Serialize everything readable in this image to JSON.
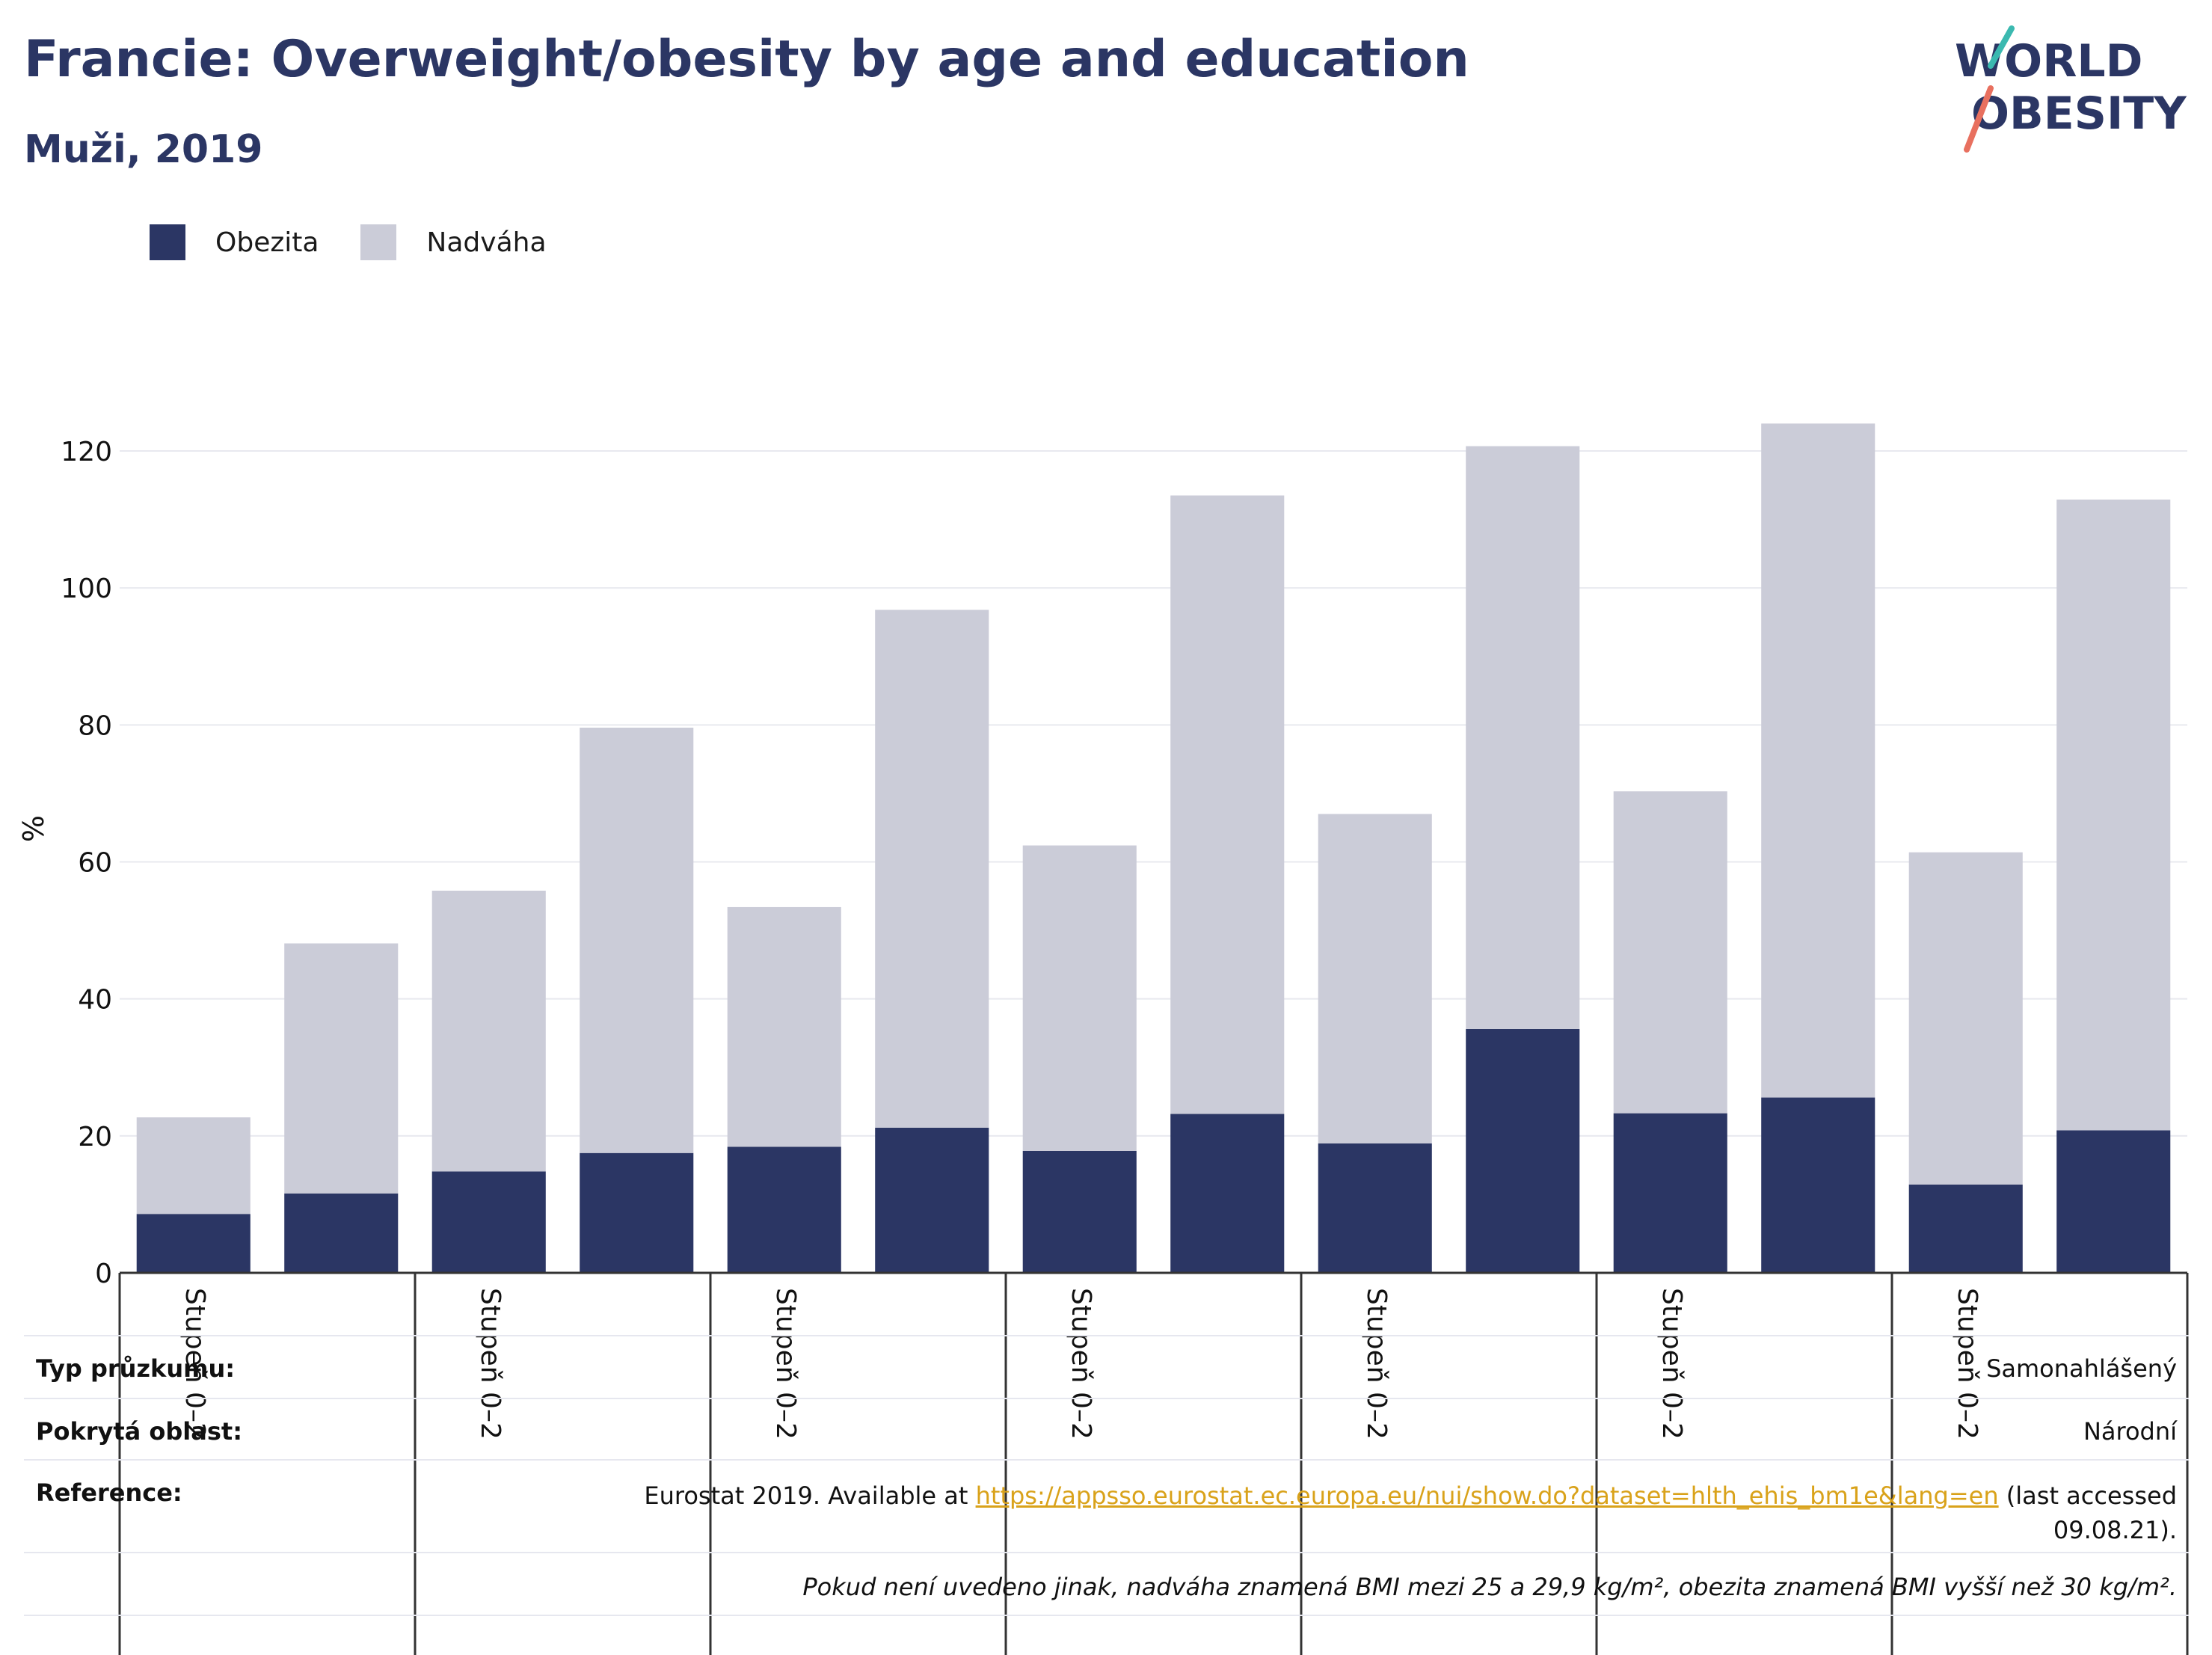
{
  "header": {
    "title": "Francie: Overweight/obesity by age and education",
    "subtitle": "Muži, 2019"
  },
  "logo": {
    "line1": "WORLD",
    "line2": "OBESITY"
  },
  "colors": {
    "obesity": "#2b3664",
    "overweight": "#cbccd8",
    "grid": "#e8e9ef",
    "axis": "#333333"
  },
  "legend": [
    {
      "label": "Obezita",
      "color": "#2b3664"
    },
    {
      "label": "Nadváha",
      "color": "#cbccd8"
    }
  ],
  "chart_data": {
    "type": "bar",
    "stacked": true,
    "ylabel": "%",
    "ylim": [
      0,
      125
    ],
    "yticks": [
      0,
      20,
      40,
      60,
      80,
      100,
      120
    ],
    "grid": true,
    "legend_position": "top-left",
    "category_labels": [
      "Stupeň 0–2",
      "Stupeň 0–2",
      "Stupeň 0–2",
      "Stupeň 0–2",
      "Stupeň 0–2",
      "Stupeň 0–2",
      "Stupeň 0–2"
    ],
    "series": [
      {
        "name": "Obezita",
        "values": [
          8.6,
          11.6,
          14.8,
          17.5,
          18.4,
          21.2,
          17.8,
          23.2,
          18.9,
          35.6,
          23.3,
          25.6,
          12.9,
          20.8
        ]
      },
      {
        "name": "Nadváha",
        "values": [
          14.1,
          36.5,
          41.0,
          62.1,
          35.0,
          75.6,
          44.6,
          90.3,
          48.1,
          85.1,
          47.0,
          98.4,
          48.5,
          92.1
        ]
      }
    ]
  },
  "info": {
    "survey_type_label": "Typ průzkumu:",
    "survey_type_value": "Samonahlášený",
    "coverage_label": "Pokrytá oblast:",
    "coverage_value": "Národní",
    "reference_label": "Reference:",
    "reference_prefix": "Eurostat 2019. Available at ",
    "reference_link": "https://appsso.eurostat.ec.europa.eu/nui/show.do?dataset=hlth_ehis_bm1e&lang=en",
    "reference_suffix": " (last accessed",
    "reference_date": "09.08.21).",
    "note": "Pokud není uvedeno jinak, nadváha znamená BMI mezi 25 a 29,9 kg/m², obezita znamená BMI vyšší než 30 kg/m²."
  }
}
